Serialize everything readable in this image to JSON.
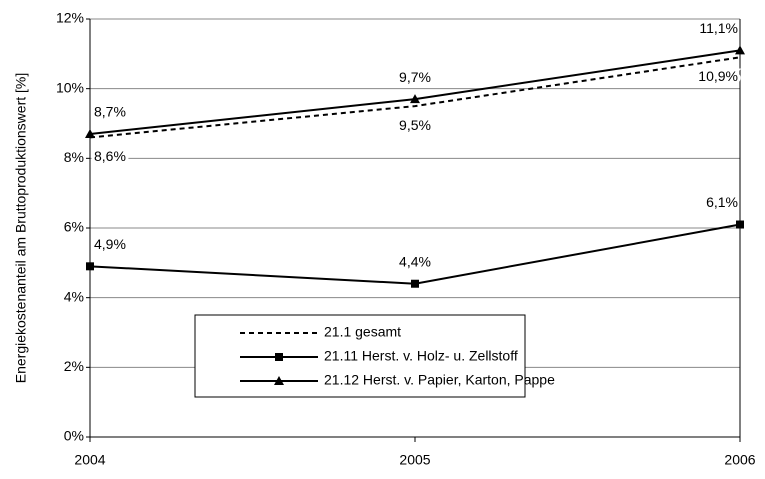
{
  "chart_data": {
    "type": "line",
    "y_label": "Energiekostenanteil am Bruttoproduktionswert [%]",
    "categories": [
      "2004",
      "2005",
      "2006"
    ],
    "series": [
      {
        "name": "21.1 gesamt",
        "color": "#000000",
        "dash": true,
        "marker": "none",
        "values": [
          8.6,
          9.5,
          10.9
        ],
        "value_labels": [
          "8,6%",
          "9,5%",
          "10,9%"
        ]
      },
      {
        "name": "21.11 Herst. v. Holz- u. Zellstoff",
        "color": "#000000",
        "dash": false,
        "marker": "square",
        "values": [
          4.9,
          4.4,
          6.1
        ],
        "value_labels": [
          "4,9%",
          "4,4%",
          "6,1%"
        ]
      },
      {
        "name": "21.12 Herst. v. Papier, Karton, Pappe",
        "color": "#000000",
        "dash": false,
        "marker": "triangle",
        "values": [
          8.7,
          9.7,
          11.1
        ],
        "value_labels": [
          "8,7%",
          "9,7%",
          "11,1%"
        ]
      }
    ],
    "ylim": [
      0,
      12
    ],
    "yticks": [
      {
        "value": 0,
        "label": "0%"
      },
      {
        "value": 2,
        "label": "2%"
      },
      {
        "value": 4,
        "label": "4%"
      },
      {
        "value": 6,
        "label": "6%"
      },
      {
        "value": 8,
        "label": "8%"
      },
      {
        "value": 10,
        "label": "10%"
      },
      {
        "value": 12,
        "label": "12%"
      }
    ],
    "grid": true
  }
}
